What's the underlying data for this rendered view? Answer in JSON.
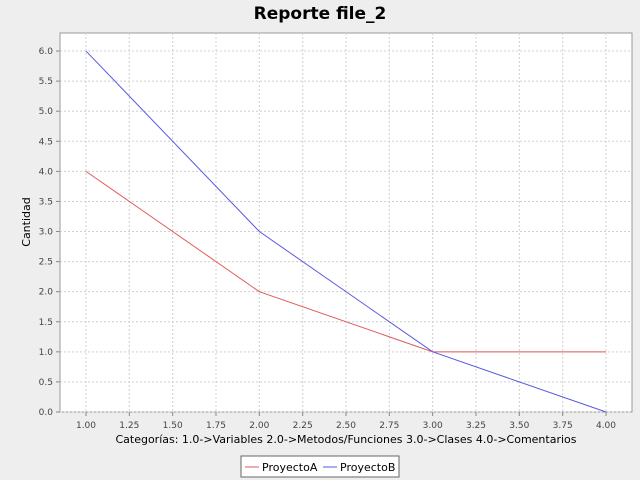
{
  "chart_data": {
    "type": "line",
    "title": "Reporte file_2",
    "xlabel": "Categorías: 1.0->Variables   2.0->Metodos/Funciones   3.0->Clases   4.0->Comentarios",
    "ylabel": "Cantidad",
    "xlim": [
      0.85,
      4.15
    ],
    "ylim": [
      0.0,
      6.3
    ],
    "x_ticks": [
      1.0,
      1.25,
      1.5,
      1.75,
      2.0,
      2.25,
      2.5,
      2.75,
      3.0,
      3.25,
      3.5,
      3.75,
      4.0
    ],
    "y_ticks": [
      0.0,
      0.5,
      1.0,
      1.5,
      2.0,
      2.5,
      3.0,
      3.5,
      4.0,
      4.5,
      5.0,
      5.5,
      6.0
    ],
    "grid": true,
    "legend_position": "bottom-center",
    "x": [
      1.0,
      2.0,
      3.0,
      4.0
    ],
    "series": [
      {
        "name": "ProyectoA",
        "color": "#e05a5a",
        "values": [
          4.0,
          2.0,
          1.0,
          1.0
        ]
      },
      {
        "name": "ProyectoB",
        "color": "#5a5ae0",
        "values": [
          6.0,
          3.0,
          1.0,
          0.0
        ]
      }
    ]
  }
}
